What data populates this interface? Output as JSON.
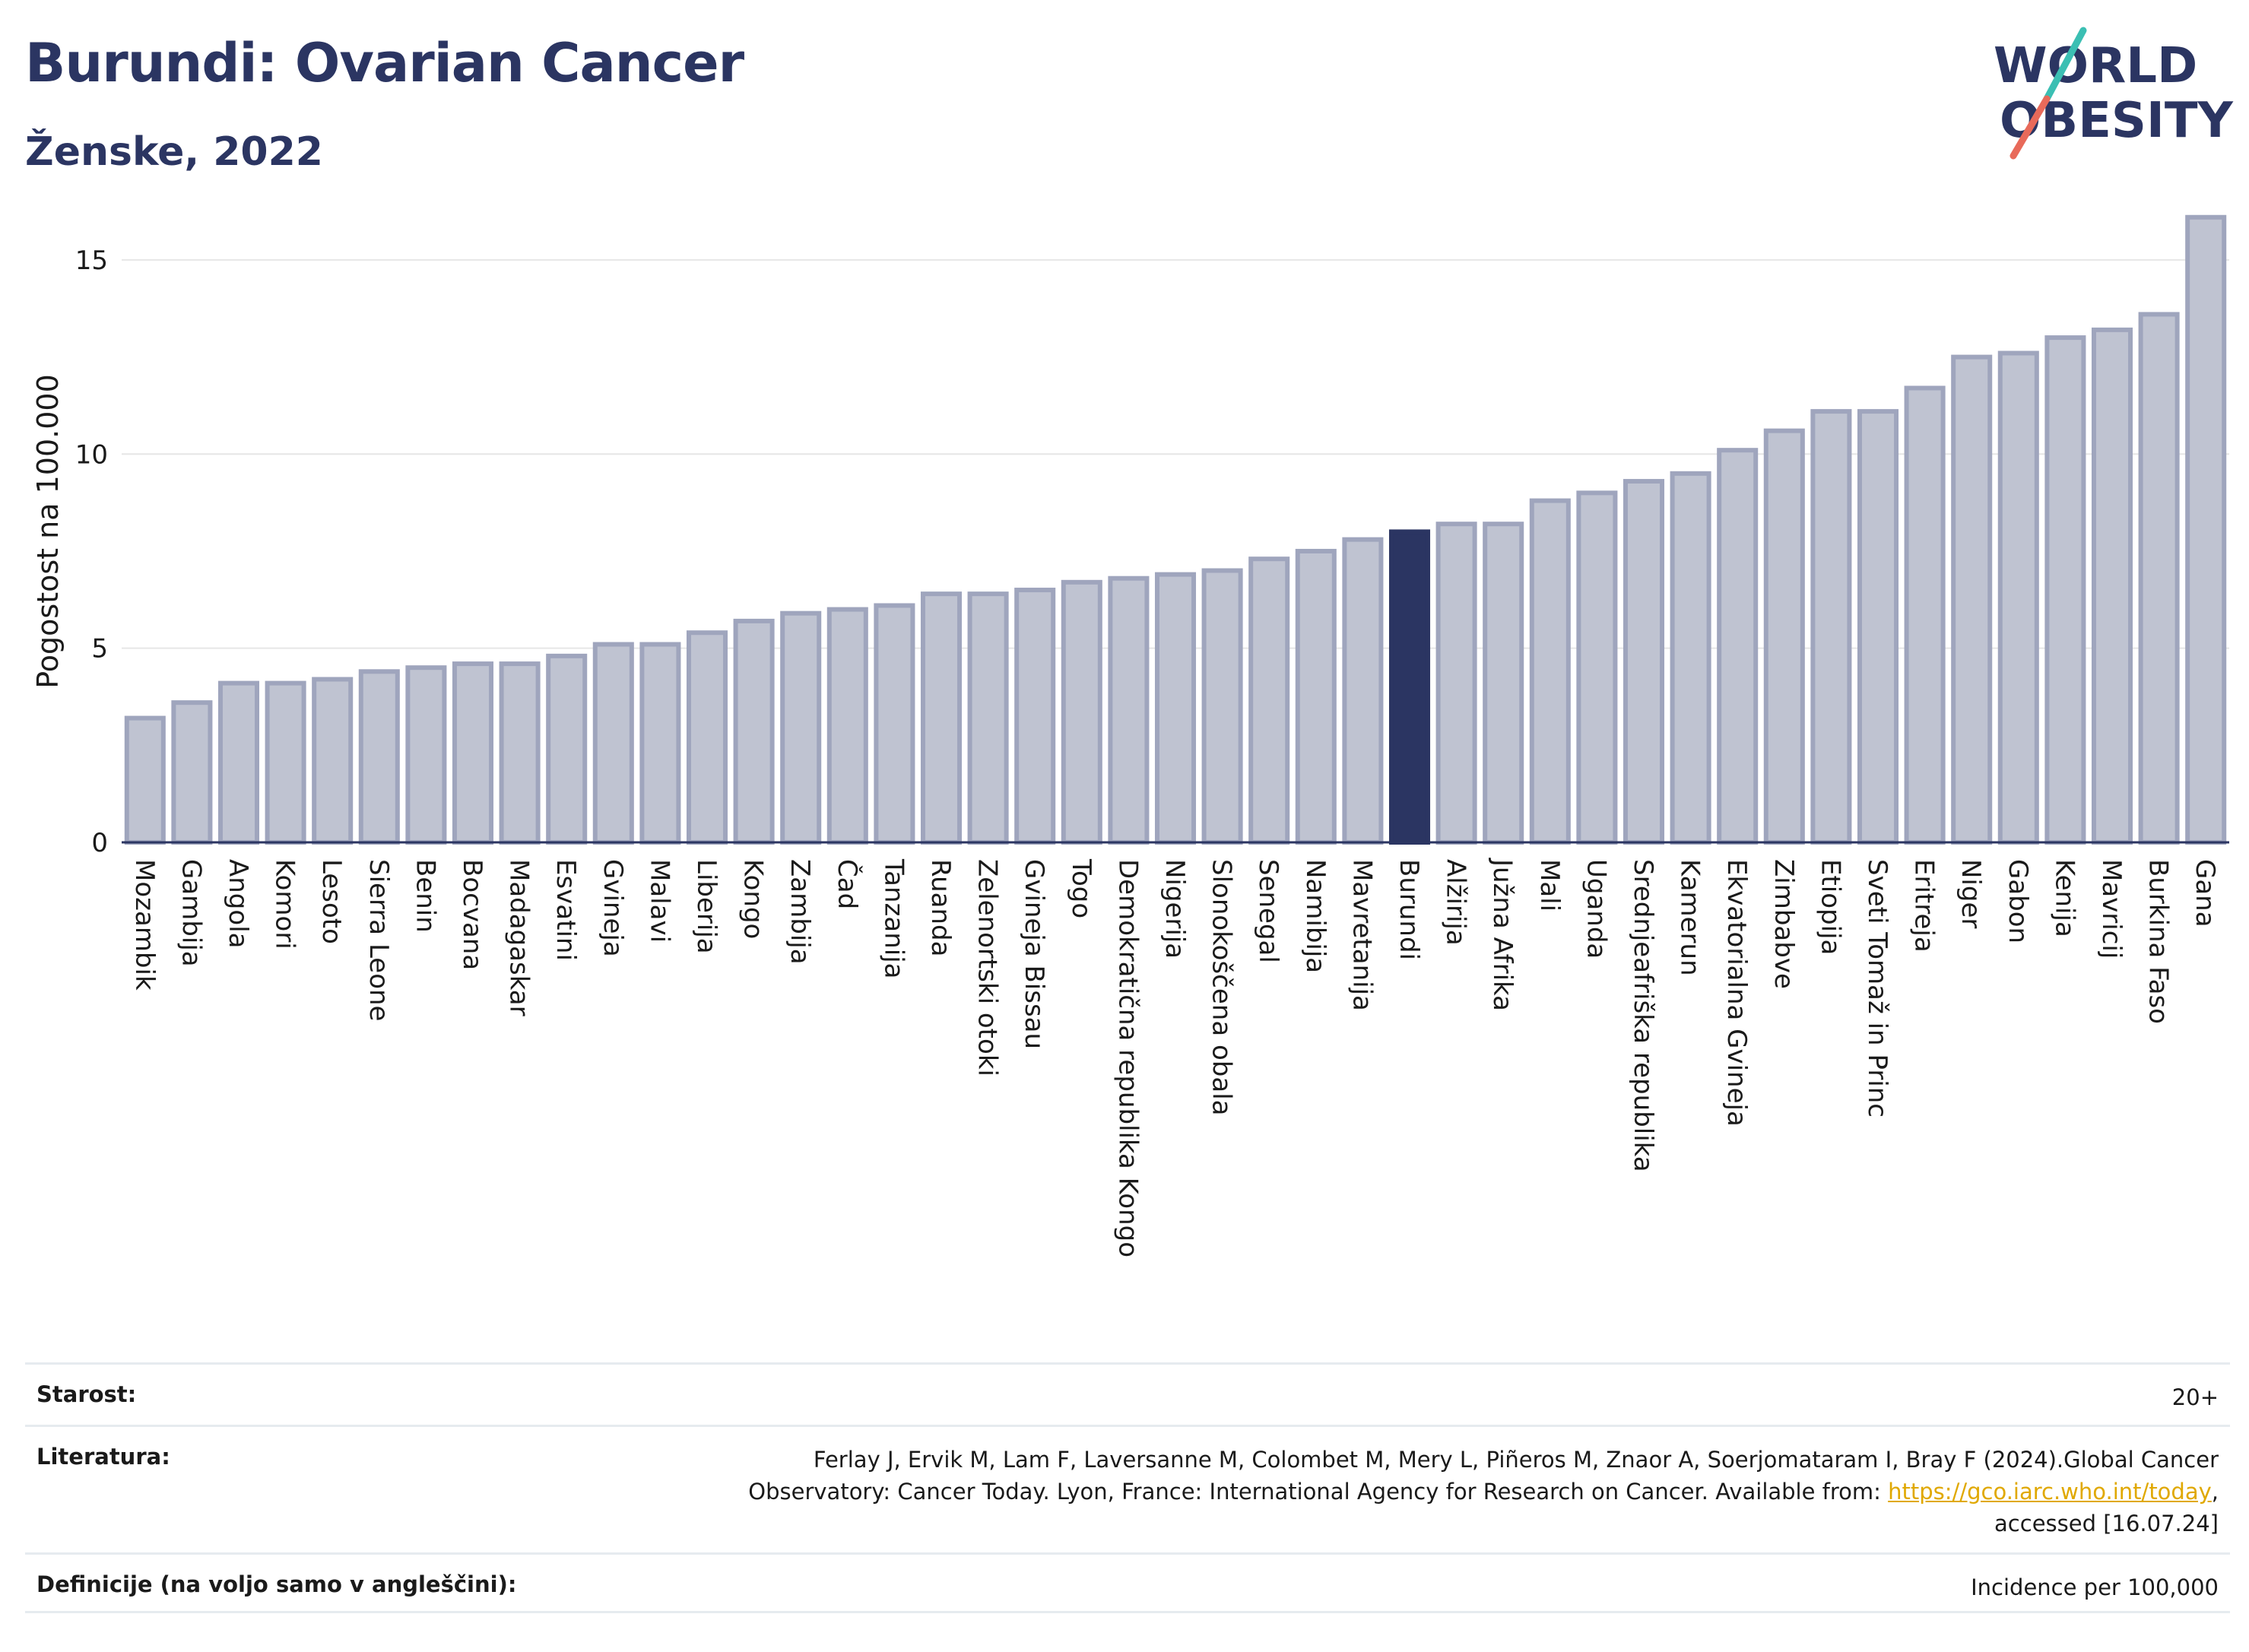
{
  "header": {
    "title": "Burundi: Ovarian Cancer",
    "subtitle": "Ženske, 2022"
  },
  "logo": {
    "line1": "WORLD",
    "line2": "OBESITY"
  },
  "colors": {
    "bar": "#bfc3d1",
    "bar_stroke": "#9fa5bd",
    "highlight": "#2b3562",
    "grid": "#e6e6e6",
    "title": "#2b3562"
  },
  "chart_data": {
    "type": "bar",
    "title": "Burundi: Ovarian Cancer",
    "subtitle": "Ženske, 2022",
    "ylabel": "Pogostost na 100.000",
    "xlabel": "",
    "ylim": [
      0,
      16.8
    ],
    "yticks": [
      0,
      5,
      10,
      15
    ],
    "highlight": "Burundi",
    "grid": true,
    "categories": [
      "Mozambik",
      "Gambija",
      "Angola",
      "Komori",
      "Lesoto",
      "Sierra Leone",
      "Benin",
      "Bocvana",
      "Madagaskar",
      "Esvatini",
      "Gvineja",
      "Malavi",
      "Liberija",
      "Kongo",
      "Zambija",
      "Čad",
      "Tanzanija",
      "Ruanda",
      "Zelenortski otoki",
      "Gvineja Bissau",
      "Togo",
      "Demokratična republika Kongo",
      "Nigerija",
      "Slonokoščena obala",
      "Senegal",
      "Namibija",
      "Mavretanija",
      "Burundi",
      "Alžirija",
      "Južna Afrika",
      "Mali",
      "Uganda",
      "Srednjeafriška republika",
      "Kamerun",
      "Ekvatorialna Gvineja",
      "Zimbabve",
      "Etiopija",
      "Sveti Tomaž in Princ",
      "Eritreja",
      "Niger",
      "Gabon",
      "Kenija",
      "Mavricij",
      "Burkina Faso",
      "Gana"
    ],
    "values": [
      3.2,
      3.6,
      4.1,
      4.1,
      4.2,
      4.4,
      4.5,
      4.6,
      4.6,
      4.8,
      5.1,
      5.1,
      5.4,
      5.7,
      5.9,
      6.0,
      6.1,
      6.4,
      6.4,
      6.5,
      6.7,
      6.8,
      6.9,
      7.0,
      7.3,
      7.5,
      7.8,
      8.0,
      8.2,
      8.2,
      8.8,
      9.0,
      9.3,
      9.5,
      10.1,
      10.6,
      11.1,
      11.1,
      11.7,
      12.5,
      12.6,
      13.0,
      13.2,
      13.6,
      16.1
    ]
  },
  "footer": {
    "age_label": "Starost:",
    "age_value": "20+",
    "lit_label": "Literatura:",
    "lit_line1": "Ferlay J, Ervik M, Lam F, Laversanne M, Colombet M, Mery L, Piñeros M, Znaor A, Soerjomataram I, Bray F (2024).Global Cancer",
    "lit_line2_prefix": "Observatory: Cancer Today. Lyon, France: International Agency for Research on Cancer. Available from: ",
    "lit_link": "https://gco.iarc.who.int/today",
    "lit_line2_suffix": ",",
    "lit_line3": "accessed [16.07.24]",
    "def_label": "Definicije (na voljo samo v angleščini):",
    "def_value": "Incidence per 100,000"
  }
}
